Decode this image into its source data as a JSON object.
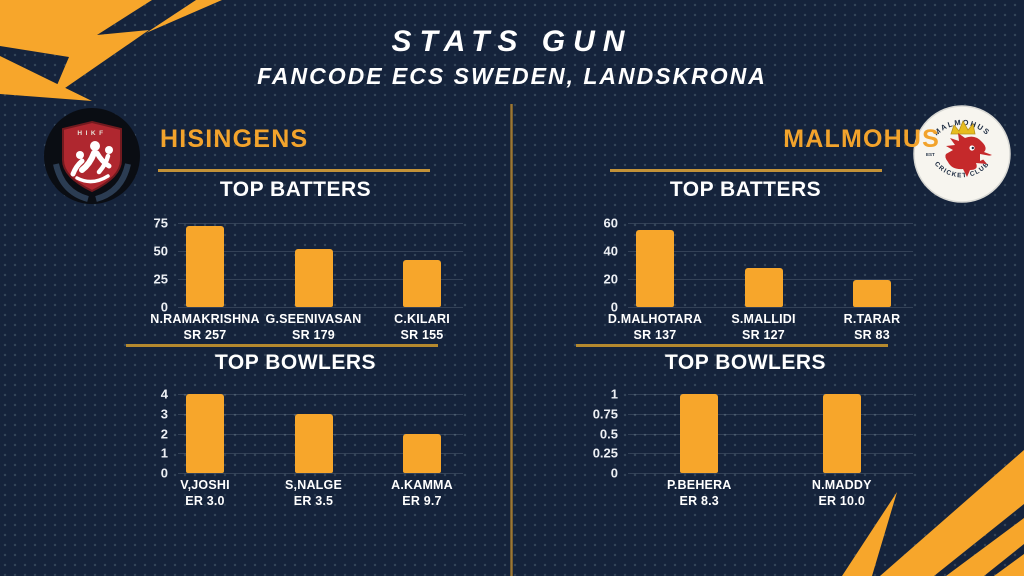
{
  "page": {
    "title": "STATS GUN",
    "subtitle": "FANCODE ECS SWEDEN, LANDSKRONA"
  },
  "teams": {
    "hisingens": {
      "name": "HISINGENS",
      "logo_text": "HIKF"
    },
    "malmohus": {
      "name": "MALMOHUS",
      "logo_arc_top": "MALMOHUS",
      "logo_arc_bottom": "CRICKET CLUB",
      "logo_est": "EST"
    }
  },
  "colors": {
    "background_navy": "#15233B",
    "accent_orange": "#F7A62B",
    "team_name_orange": "#F2A32C",
    "gold_line": "#C39238",
    "text_white": "#FFFFFF"
  },
  "chart_data": [
    {
      "type": "bar",
      "team": "HISINGENS",
      "title": "TOP BATTERS",
      "xlabel": "",
      "ylabel": "",
      "ylim": [
        0,
        75
      ],
      "yticks": [
        0,
        25,
        50,
        75
      ],
      "grid": true,
      "bar_color": "#F7A62B",
      "bars": [
        {
          "name": "N.RAMAKRISHNA",
          "stat": "SR 257",
          "value": 72
        },
        {
          "name": "G.SEENIVASAN",
          "stat": "SR 179",
          "value": 52
        },
        {
          "name": "C.KILARI",
          "stat": "SR 155",
          "value": 42
        }
      ]
    },
    {
      "type": "bar",
      "team": "HISINGENS",
      "title": "TOP BOWLERS",
      "xlabel": "",
      "ylabel": "",
      "ylim": [
        0,
        4
      ],
      "yticks": [
        0,
        1,
        2,
        3,
        4
      ],
      "grid": true,
      "bar_color": "#F7A62B",
      "bars": [
        {
          "name": "V,JOSHI",
          "stat": "ER 3.0",
          "value": 4
        },
        {
          "name": "S,NALGE",
          "stat": "ER 3.5",
          "value": 3
        },
        {
          "name": "A.KAMMA",
          "stat": "ER 9.7",
          "value": 2
        }
      ]
    },
    {
      "type": "bar",
      "team": "MALMOHUS",
      "title": "TOP BATTERS",
      "xlabel": "",
      "ylabel": "",
      "ylim": [
        0,
        60
      ],
      "yticks": [
        0,
        20,
        40,
        60
      ],
      "grid": true,
      "bar_color": "#F7A62B",
      "bars": [
        {
          "name": "D.MALHOTARA",
          "stat": "SR 137",
          "value": 55
        },
        {
          "name": "S.MALLIDI",
          "stat": "SR 127",
          "value": 28
        },
        {
          "name": "R.TARAR",
          "stat": "SR 83",
          "value": 19
        }
      ]
    },
    {
      "type": "bar",
      "team": "MALMOHUS",
      "title": "TOP BOWLERS",
      "xlabel": "",
      "ylabel": "",
      "ylim": [
        0,
        1
      ],
      "yticks": [
        0,
        0.25,
        0.5,
        0.75,
        1
      ],
      "grid": true,
      "bar_color": "#F7A62B",
      "bars": [
        {
          "name": "P.BEHERA",
          "stat": "ER 8.3",
          "value": 1
        },
        {
          "name": "N.MADDY",
          "stat": "ER 10.0",
          "value": 1
        }
      ]
    }
  ]
}
